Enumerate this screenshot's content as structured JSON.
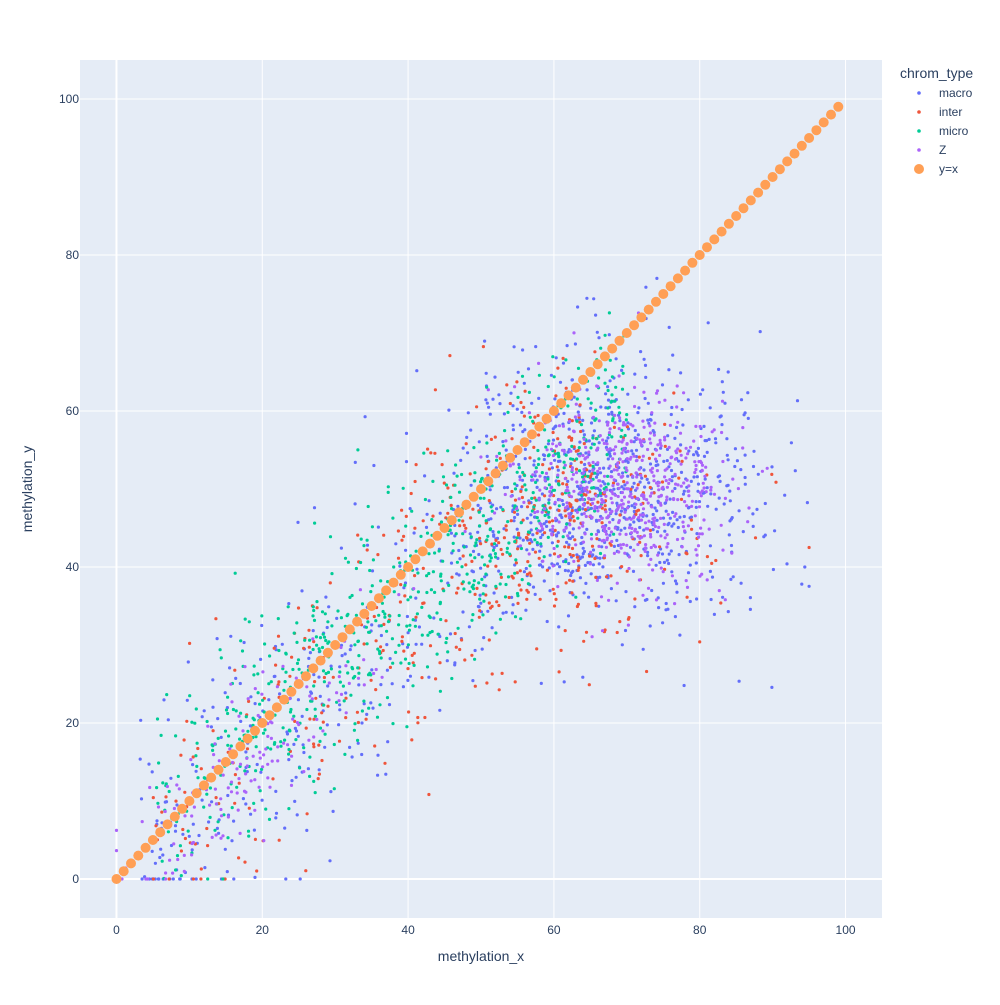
{
  "chart_data": {
    "type": "scatter",
    "xlabel": "methylation_x",
    "ylabel": "methylation_y",
    "xlim": [
      -5,
      105
    ],
    "ylim": [
      -5,
      105
    ],
    "x_ticks": [
      0,
      20,
      40,
      60,
      80,
      100
    ],
    "y_ticks": [
      0,
      20,
      40,
      60,
      80,
      100
    ],
    "grid": true,
    "legend_position": "top-right",
    "legend_title": "chrom_type",
    "series": [
      {
        "name": "macro",
        "color": "#636efa",
        "centers": [
          [
            65,
            48
          ],
          [
            25,
            20
          ],
          [
            75,
            50
          ]
        ]
      },
      {
        "name": "inter",
        "color": "#ef553b",
        "centers": [
          [
            60,
            45
          ],
          [
            20,
            15
          ]
        ]
      },
      {
        "name": "micro",
        "color": "#00cc96",
        "centers": [
          [
            45,
            42
          ],
          [
            25,
            22
          ],
          [
            12,
            10
          ]
        ]
      },
      {
        "name": "Z",
        "color": "#ab63fa",
        "centers": [
          [
            70,
            50
          ],
          [
            15,
            12
          ]
        ]
      },
      {
        "name": "y=x",
        "color": "#ff9f55",
        "line": true,
        "x_start": 0,
        "x_end": 99,
        "step": 1
      }
    ],
    "annotations": []
  }
}
